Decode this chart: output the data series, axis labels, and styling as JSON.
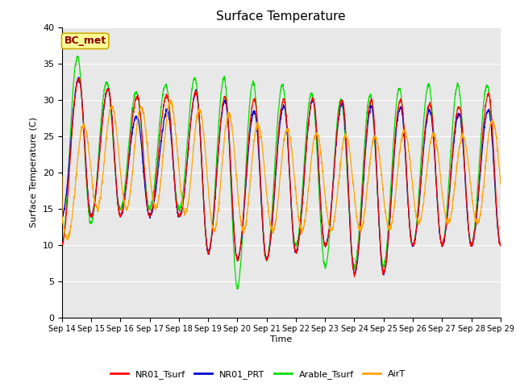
{
  "title": "Surface Temperature",
  "ylabel": "Surface Temperature (C)",
  "xlabel": "Time",
  "annotation": "BC_met",
  "ylim": [
    0,
    40
  ],
  "yticks": [
    0,
    5,
    10,
    15,
    20,
    25,
    30,
    35,
    40
  ],
  "xtick_labels": [
    "Sep 14",
    "Sep 15",
    "Sep 16",
    "Sep 17",
    "Sep 18",
    "Sep 19",
    "Sep 20",
    "Sep 21",
    "Sep 22",
    "Sep 23",
    "Sep 24",
    "Sep 25",
    "Sep 26",
    "Sep 27",
    "Sep 28",
    "Sep 29"
  ],
  "legend_labels": [
    "NR01_Tsurf",
    "NR01_PRT",
    "Arable_Tsurf",
    "AirT"
  ],
  "line_colors": [
    "#ff0000",
    "#0000cc",
    "#00dd00",
    "#ffa500"
  ],
  "background_color": "#e8e8e8",
  "title_fontsize": 11,
  "annotation_fontsize": 9,
  "annotation_bg": "#ffff99",
  "annotation_fg": "#8b0000",
  "annotation_border": "#ccaa00"
}
